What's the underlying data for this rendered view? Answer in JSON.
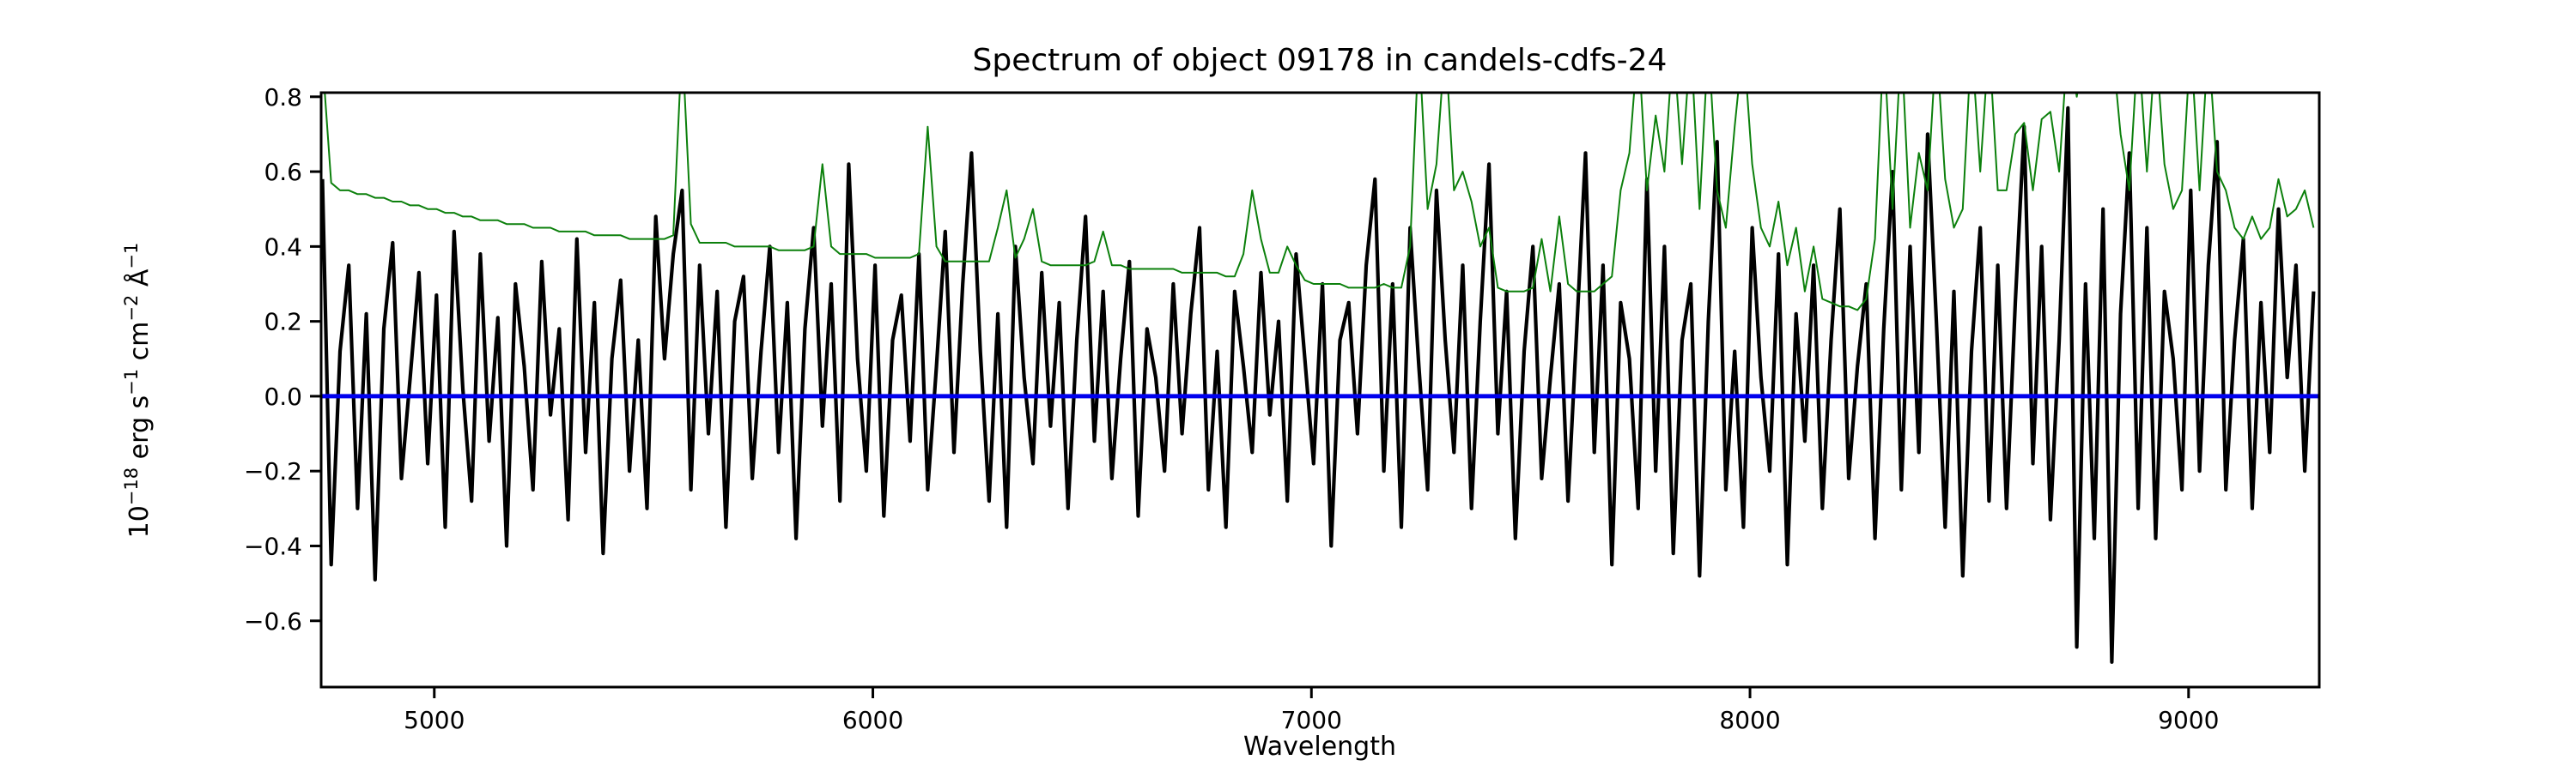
{
  "figure": {
    "title": "Spectrum of object 09178 in candels-cdfs-24",
    "xlabel": "Wavelength",
    "ylabel": "10⁻¹⁸ erg s⁻¹ cm⁻² Å⁻¹",
    "ylabel_parts": [
      {
        "t": "10",
        "sup": false
      },
      {
        "t": "−18",
        "sup": true
      },
      {
        "t": " erg s",
        "sup": false
      },
      {
        "t": "−1",
        "sup": true
      },
      {
        "t": " cm",
        "sup": false
      },
      {
        "t": "−2",
        "sup": true
      },
      {
        "t": " Å",
        "sup": false
      },
      {
        "t": "−1",
        "sup": true
      }
    ],
    "background_color": "#ffffff"
  },
  "chart_data": {
    "type": "line",
    "title": "Spectrum of object 09178 in candels-cdfs-24",
    "xlabel": "Wavelength",
    "ylabel": "10^-18 erg s^-1 cm^-2 A^-1",
    "xlim": [
      4742,
      9298
    ],
    "ylim": [
      -0.777,
      0.811
    ],
    "x_ticks": [
      5000,
      6000,
      7000,
      8000,
      9000
    ],
    "y_ticks": [
      -0.6,
      -0.4,
      -0.2,
      0.0,
      0.2,
      0.4,
      0.6,
      0.8
    ],
    "grid": false,
    "legend": "none",
    "axes_color": "#000000",
    "series": [
      {
        "name": "object-flux-spectrum",
        "color": "#000000",
        "linewidth": 4.2,
        "x_start": 4745,
        "x_step": 20,
        "values": [
          0.58,
          -0.45,
          0.12,
          0.35,
          -0.3,
          0.22,
          -0.49,
          0.18,
          0.41,
          -0.22,
          0.05,
          0.33,
          -0.18,
          0.27,
          -0.35,
          0.44,
          0.02,
          -0.28,
          0.38,
          -0.12,
          0.21,
          -0.4,
          0.3,
          0.08,
          -0.25,
          0.36,
          -0.05,
          0.18,
          -0.33,
          0.42,
          -0.15,
          0.25,
          -0.42,
          0.1,
          0.31,
          -0.2,
          0.15,
          -0.3,
          0.48,
          0.1,
          0.38,
          0.55,
          -0.25,
          0.35,
          -0.1,
          0.28,
          -0.35,
          0.2,
          0.32,
          -0.22,
          0.12,
          0.4,
          -0.15,
          0.25,
          -0.38,
          0.18,
          0.45,
          -0.08,
          0.3,
          -0.28,
          0.62,
          0.1,
          -0.2,
          0.35,
          -0.32,
          0.15,
          0.27,
          -0.12,
          0.38,
          -0.25,
          0.08,
          0.44,
          -0.15,
          0.3,
          0.65,
          0.12,
          -0.28,
          0.22,
          -0.35,
          0.4,
          0.05,
          -0.18,
          0.33,
          -0.08,
          0.25,
          -0.3,
          0.15,
          0.48,
          -0.12,
          0.28,
          -0.22,
          0.1,
          0.36,
          -0.32,
          0.18,
          0.05,
          -0.2,
          0.3,
          -0.1,
          0.22,
          0.45,
          -0.25,
          0.12,
          -0.35,
          0.28,
          0.08,
          -0.15,
          0.33,
          -0.05,
          0.2,
          -0.28,
          0.38,
          0.1,
          -0.18,
          0.3,
          -0.4,
          0.15,
          0.25,
          -0.1,
          0.35,
          0.58,
          -0.2,
          0.3,
          -0.35,
          0.45,
          0.08,
          -0.25,
          0.55,
          0.15,
          -0.15,
          0.35,
          -0.3,
          0.2,
          0.62,
          -0.1,
          0.28,
          -0.38,
          0.12,
          0.4,
          -0.22,
          0.05,
          0.3,
          -0.28,
          0.18,
          0.65,
          -0.15,
          0.35,
          -0.45,
          0.25,
          0.1,
          -0.3,
          0.58,
          -0.2,
          0.4,
          -0.42,
          0.15,
          0.3,
          -0.48,
          0.2,
          0.68,
          -0.25,
          0.12,
          -0.35,
          0.45,
          0.05,
          -0.2,
          0.38,
          -0.45,
          0.22,
          -0.12,
          0.35,
          -0.3,
          0.15,
          0.5,
          -0.22,
          0.08,
          0.3,
          -0.38,
          0.18,
          0.6,
          -0.25,
          0.4,
          -0.15,
          0.7,
          0.2,
          -0.35,
          0.28,
          -0.48,
          0.12,
          0.45,
          -0.28,
          0.35,
          -0.3,
          0.25,
          0.72,
          -0.18,
          0.4,
          -0.33,
          0.15,
          0.77,
          -0.67,
          0.3,
          -0.38,
          0.5,
          -0.71,
          0.22,
          0.65,
          -0.3,
          0.45,
          -0.38,
          0.28,
          0.1,
          -0.25,
          0.55,
          -0.2,
          0.35,
          0.68,
          -0.25,
          0.15,
          0.42,
          -0.3,
          0.25,
          -0.15,
          0.5,
          0.05,
          0.35,
          -0.2,
          0.28
        ]
      },
      {
        "name": "noise-spectrum",
        "color": "#0c800c",
        "linewidth": 2.0,
        "x_start": 4745,
        "x_step": 20,
        "values": [
          0.9,
          0.57,
          0.55,
          0.55,
          0.54,
          0.54,
          0.53,
          0.53,
          0.52,
          0.52,
          0.51,
          0.51,
          0.5,
          0.5,
          0.49,
          0.49,
          0.48,
          0.48,
          0.47,
          0.47,
          0.47,
          0.46,
          0.46,
          0.46,
          0.45,
          0.45,
          0.45,
          0.44,
          0.44,
          0.44,
          0.44,
          0.43,
          0.43,
          0.43,
          0.43,
          0.42,
          0.42,
          0.42,
          0.42,
          0.42,
          0.43,
          0.95,
          0.46,
          0.41,
          0.41,
          0.41,
          0.41,
          0.4,
          0.4,
          0.4,
          0.4,
          0.4,
          0.39,
          0.39,
          0.39,
          0.39,
          0.4,
          0.62,
          0.4,
          0.38,
          0.38,
          0.38,
          0.38,
          0.37,
          0.37,
          0.37,
          0.37,
          0.37,
          0.38,
          0.72,
          0.4,
          0.36,
          0.36,
          0.36,
          0.36,
          0.36,
          0.36,
          0.45,
          0.55,
          0.37,
          0.42,
          0.5,
          0.36,
          0.35,
          0.35,
          0.35,
          0.35,
          0.35,
          0.36,
          0.44,
          0.35,
          0.35,
          0.34,
          0.34,
          0.34,
          0.34,
          0.34,
          0.34,
          0.33,
          0.33,
          0.33,
          0.33,
          0.33,
          0.32,
          0.32,
          0.38,
          0.55,
          0.42,
          0.33,
          0.33,
          0.4,
          0.35,
          0.31,
          0.3,
          0.3,
          0.3,
          0.3,
          0.29,
          0.29,
          0.29,
          0.29,
          0.3,
          0.29,
          0.29,
          0.4,
          0.95,
          0.5,
          0.62,
          0.95,
          0.55,
          0.6,
          0.52,
          0.4,
          0.45,
          0.29,
          0.28,
          0.28,
          0.28,
          0.29,
          0.42,
          0.28,
          0.48,
          0.3,
          0.28,
          0.28,
          0.28,
          0.3,
          0.32,
          0.55,
          0.65,
          0.95,
          0.55,
          0.75,
          0.6,
          0.95,
          0.62,
          0.95,
          0.5,
          0.95,
          0.55,
          0.45,
          0.72,
          0.95,
          0.62,
          0.45,
          0.4,
          0.52,
          0.35,
          0.45,
          0.28,
          0.4,
          0.26,
          0.25,
          0.24,
          0.24,
          0.23,
          0.26,
          0.42,
          0.95,
          0.5,
          0.95,
          0.45,
          0.65,
          0.55,
          0.95,
          0.58,
          0.45,
          0.5,
          0.95,
          0.6,
          0.95,
          0.55,
          0.55,
          0.7,
          0.73,
          0.55,
          0.74,
          0.76,
          0.6,
          0.95,
          0.8,
          0.95,
          0.95,
          0.95,
          0.95,
          0.7,
          0.55,
          0.95,
          0.6,
          0.95,
          0.62,
          0.5,
          0.55,
          0.95,
          0.55,
          0.95,
          0.6,
          0.55,
          0.45,
          0.42,
          0.48,
          0.42,
          0.45,
          0.58,
          0.48,
          0.5,
          0.55,
          0.45
        ]
      },
      {
        "name": "zero-flux-level",
        "type": "hline",
        "y": 0.0,
        "color": "#0000ee",
        "linewidth": 5.0
      }
    ]
  }
}
